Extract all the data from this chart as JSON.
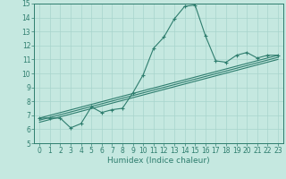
{
  "title": "",
  "xlabel": "Humidex (Indice chaleur)",
  "ylabel": "",
  "background_color": "#c5e8e0",
  "line_color": "#2e7d6e",
  "grid_color": "#a8d4cc",
  "xlim": [
    -0.5,
    23.5
  ],
  "ylim": [
    5,
    15
  ],
  "xticks": [
    0,
    1,
    2,
    3,
    4,
    5,
    6,
    7,
    8,
    9,
    10,
    11,
    12,
    13,
    14,
    15,
    16,
    17,
    18,
    19,
    20,
    21,
    22,
    23
  ],
  "yticks": [
    5,
    6,
    7,
    8,
    9,
    10,
    11,
    12,
    13,
    14,
    15
  ],
  "series": {
    "main": {
      "x": [
        0,
        1,
        2,
        3,
        4,
        5,
        6,
        7,
        8,
        9,
        10,
        11,
        12,
        13,
        14,
        15,
        16,
        17,
        18,
        19,
        20,
        21,
        22,
        23
      ],
      "y": [
        6.8,
        6.8,
        6.8,
        6.1,
        6.4,
        7.6,
        7.2,
        7.4,
        7.5,
        8.6,
        9.9,
        11.8,
        12.6,
        13.9,
        14.8,
        14.9,
        12.7,
        10.9,
        10.8,
        11.3,
        11.5,
        11.1,
        11.3,
        11.3
      ]
    },
    "linear1": {
      "x": [
        0,
        23
      ],
      "y": [
        6.8,
        11.3
      ]
    },
    "linear2": {
      "x": [
        0,
        23
      ],
      "y": [
        6.65,
        11.15
      ]
    },
    "linear3": {
      "x": [
        0,
        23
      ],
      "y": [
        6.5,
        11.0
      ]
    }
  },
  "tick_fontsize": 5.5,
  "xlabel_fontsize": 6.5,
  "marker": "+",
  "markersize": 3.0,
  "linewidth": 0.8
}
